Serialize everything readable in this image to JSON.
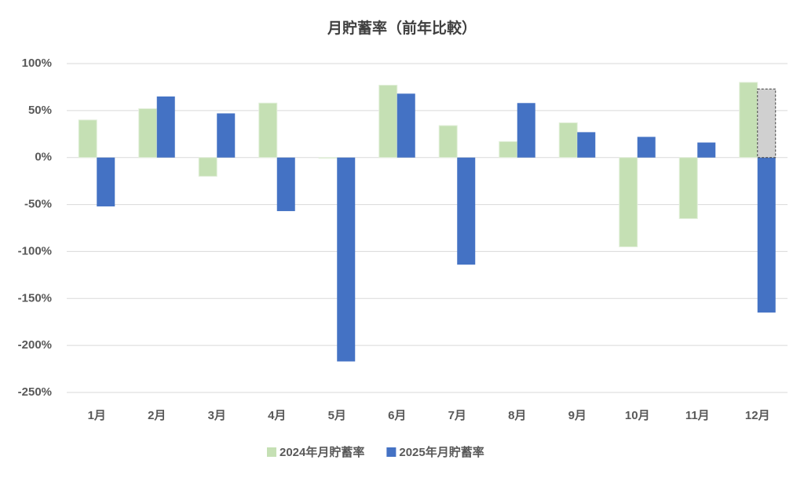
{
  "chart_data": {
    "type": "bar",
    "title": "月貯蓄率（前年比較）",
    "categories": [
      "1月",
      "2月",
      "3月",
      "4月",
      "5月",
      "6月",
      "7月",
      "8月",
      "9月",
      "10月",
      "11月",
      "12月"
    ],
    "series": [
      {
        "name": "2024年月貯蓄率",
        "color": "#c5e0b4",
        "values": [
          40,
          52,
          -20,
          58,
          0,
          77,
          34,
          17,
          37,
          -95,
          -65,
          80
        ]
      },
      {
        "name": "2025年月貯蓄率",
        "color": "#4472c4",
        "values": [
          -52,
          65,
          47,
          -57,
          -217,
          68,
          -114,
          58,
          27,
          22,
          16,
          -165
        ]
      },
      {
        "color": "#d0d0d0",
        "dashed": true,
        "values": [
          null,
          null,
          null,
          null,
          null,
          null,
          null,
          null,
          null,
          null,
          null,
          73
        ]
      }
    ],
    "ylim": [
      -250,
      100
    ],
    "yticks": [
      {
        "value": -250,
        "label": "-250%"
      },
      {
        "value": -200,
        "label": "-200%"
      },
      {
        "value": -150,
        "label": "-150%"
      },
      {
        "value": -100,
        "label": "-100%"
      },
      {
        "value": -50,
        "label": "-50%"
      },
      {
        "value": 0,
        "label": "0%"
      },
      {
        "value": 50,
        "label": "50%"
      },
      {
        "value": 100,
        "label": "100%"
      }
    ],
    "grid": true,
    "legend": "bottom"
  }
}
